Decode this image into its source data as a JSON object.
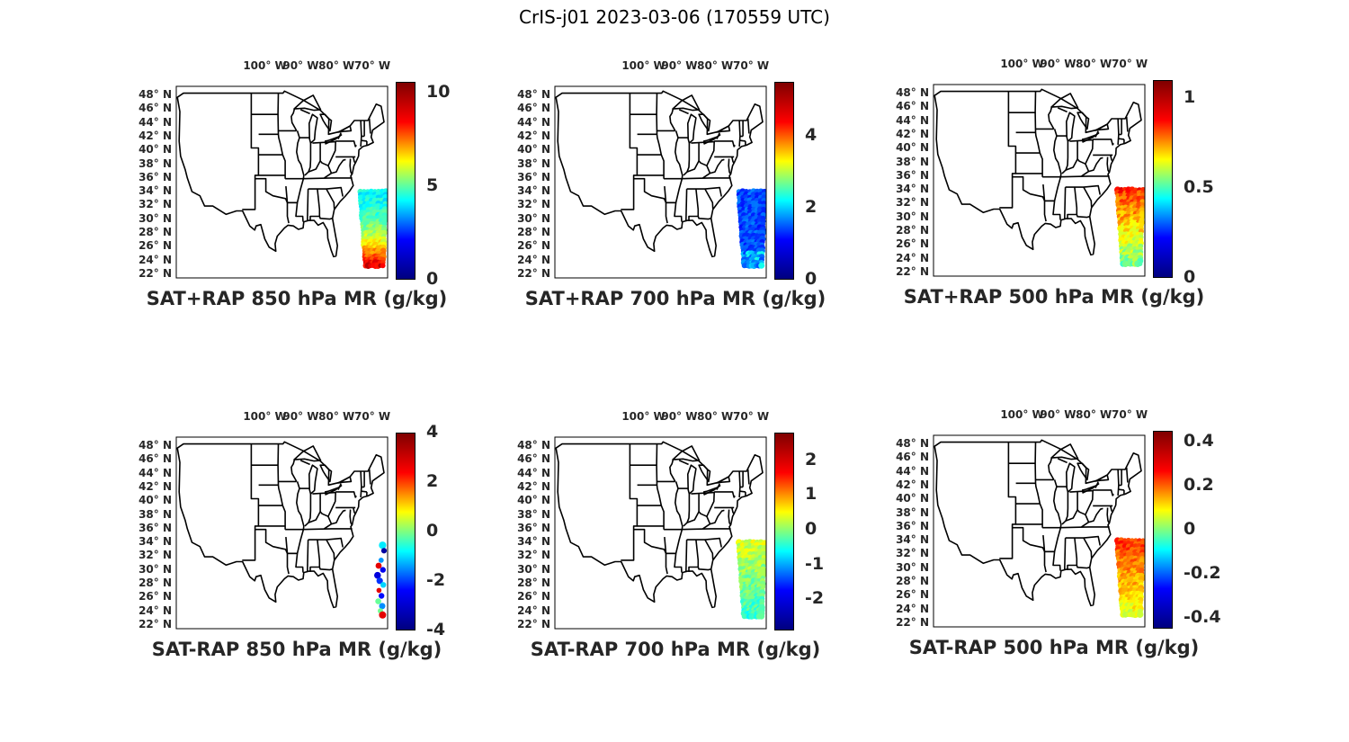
{
  "title": "CrIS-j01 2023-03-06 (170559 UTC)",
  "map_ticks": {
    "lon": [
      "100° W",
      "90° W",
      "80° W",
      "70° W"
    ],
    "lat": [
      "48° N",
      "46° N",
      "44° N",
      "42° N",
      "40° N",
      "38° N",
      "36° N",
      "34° N",
      "32° N",
      "30° N",
      "28° N",
      "26° N",
      "24° N",
      "22° N"
    ]
  },
  "colors": {
    "map_lines": "#000000",
    "colormap": "jet",
    "jet_stops": [
      "#00007f",
      "#0000ff",
      "#00ffff",
      "#ffff00",
      "#ff0000",
      "#7f0000"
    ]
  },
  "panels": [
    {
      "title": "SAT+RAP 850 hPa MR (g/kg)",
      "colorbar": {
        "min": 0,
        "max": 10.6,
        "ticks": [
          "10",
          "5",
          "0"
        ],
        "tick_values": [
          10,
          5,
          0
        ]
      },
      "swath_range": [
        2,
        10
      ],
      "swath_bias": 0.35
    },
    {
      "title": "SAT+RAP 700 hPa MR (g/kg)",
      "colorbar": {
        "min": 0,
        "max": 5.5,
        "ticks": [
          "4",
          "2",
          "0"
        ],
        "tick_values": [
          4,
          2,
          0
        ]
      },
      "swath_range": [
        0.5,
        1.8
      ],
      "swath_bias": 0.1
    },
    {
      "title": "SAT+RAP 500 hPa MR (g/kg)",
      "colorbar": {
        "min": 0,
        "max": 1.1,
        "ticks": [
          "1",
          "0.5",
          "0"
        ],
        "tick_values": [
          1,
          0.5,
          0
        ]
      },
      "swath_range": [
        0.2,
        1.0
      ],
      "swath_bias": 0.8
    },
    {
      "title": "SAT-RAP 850 hPa MR (g/kg)",
      "colorbar": {
        "min": -4,
        "max": 4,
        "ticks": [
          "4",
          "2",
          "0",
          "-2",
          "-4"
        ],
        "tick_values": [
          4,
          2,
          0,
          -2,
          -4
        ]
      },
      "swath_range": [
        -4,
        0
      ],
      "swath_bias": 0.4,
      "sparse": true
    },
    {
      "title": "SAT-RAP 700 hPa MR (g/kg)",
      "colorbar": {
        "min": -2.9,
        "max": 2.8,
        "ticks": [
          "2",
          "1",
          "0",
          "-1",
          "-2"
        ],
        "tick_values": [
          2,
          1,
          0,
          -1,
          -2
        ]
      },
      "swath_range": [
        -1.5,
        0.8
      ],
      "swath_bias": 0.7
    },
    {
      "title": "SAT-RAP 500 hPa MR (g/kg)",
      "colorbar": {
        "min": -0.45,
        "max": 0.45,
        "ticks": [
          "0.4",
          "0.2",
          "0",
          "-0.2",
          "-0.4"
        ],
        "tick_values": [
          0.4,
          0.2,
          0,
          -0.2,
          -0.4
        ]
      },
      "swath_range": [
        -0.1,
        0.35
      ],
      "swath_bias": 0.75
    }
  ]
}
